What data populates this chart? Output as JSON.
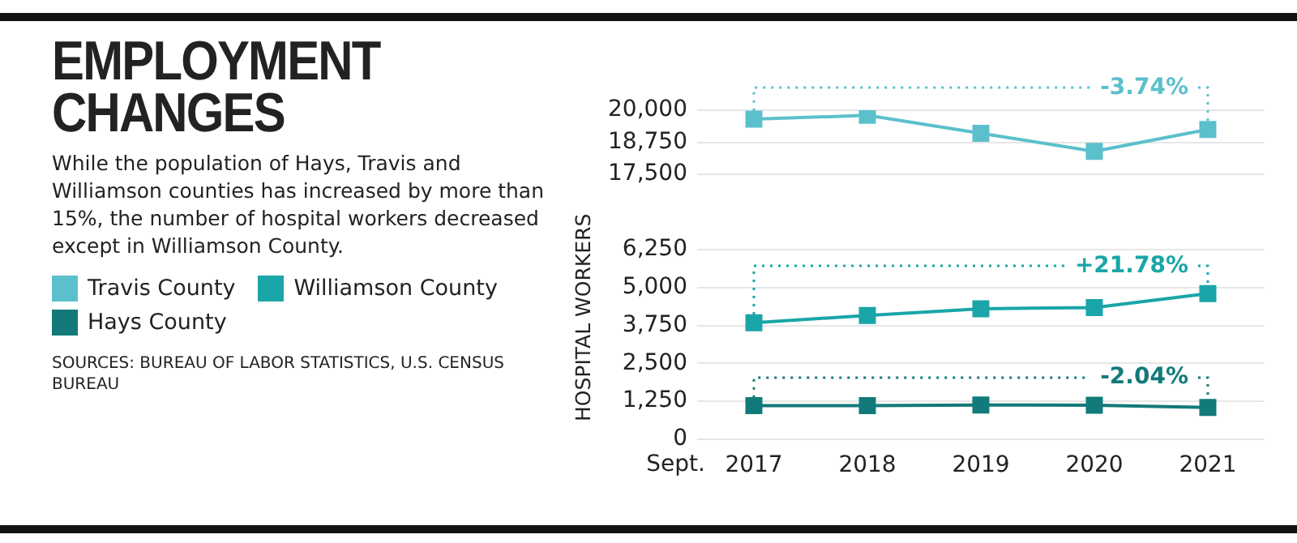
{
  "chart_data": [
    {
      "type": "line",
      "title": "EMPLOYMENT CHANGES",
      "subtitle": "While the population of Hays, Travis and Williamson counties has increased by more than 15%, the number of hospital workers decreased except in Williamson County.",
      "categories": [
        "2017",
        "2018",
        "2019",
        "2020",
        "2021"
      ],
      "series": [
        {
          "name": "Travis County",
          "color": "#5bc0cc",
          "values": [
            19650,
            19800,
            19100,
            18400,
            19250
          ]
        }
      ],
      "ylim": [
        17500,
        20000
      ],
      "yticks": [
        {
          "value": 17500,
          "label": "17,500"
        },
        {
          "value": 18750,
          "label": "18,750"
        },
        {
          "value": 20000,
          "label": "20,000"
        }
      ],
      "grid": "y",
      "marker": "square",
      "legend": "left",
      "tick_labels": "y",
      "annotations": [
        {
          "text": "-3.74%",
          "x": "2021",
          "y": 19250
        }
      ]
    },
    {
      "type": "line",
      "xlabel": "Sept.",
      "ylabel": "HOSPITAL WORKERS",
      "categories": [
        "2017",
        "2018",
        "2019",
        "2020",
        "2021"
      ],
      "series": [
        {
          "name": "Williamson County",
          "color": "#1aa5a8",
          "values": [
            3840,
            4080,
            4300,
            4340,
            4800
          ]
        },
        {
          "name": "Hays County",
          "color": "#127a7a",
          "values": [
            1110,
            1110,
            1130,
            1120,
            1050
          ]
        }
      ],
      "ylim": [
        0,
        6250
      ],
      "yticks": [
        0,
        {
          "value": 1250,
          "label": "1,250"
        },
        {
          "value": 2500,
          "label": "2,500"
        },
        {
          "value": 3750,
          "label": "3,750"
        },
        {
          "value": 5000,
          "label": "5,000"
        },
        {
          "value": 6250,
          "label": "6,250"
        }
      ],
      "grid": "y",
      "marker": "square",
      "legend": "left",
      "annotations": [
        {
          "text": "+21.78%",
          "x": "2021",
          "y": 4800
        },
        {
          "text": "-2.04%",
          "x": "2021",
          "y": 1050
        },
        "SOURCES: BUREAU OF LABOR STATISTICS, U.S. CENSUS BUREAU"
      ]
    }
  ]
}
